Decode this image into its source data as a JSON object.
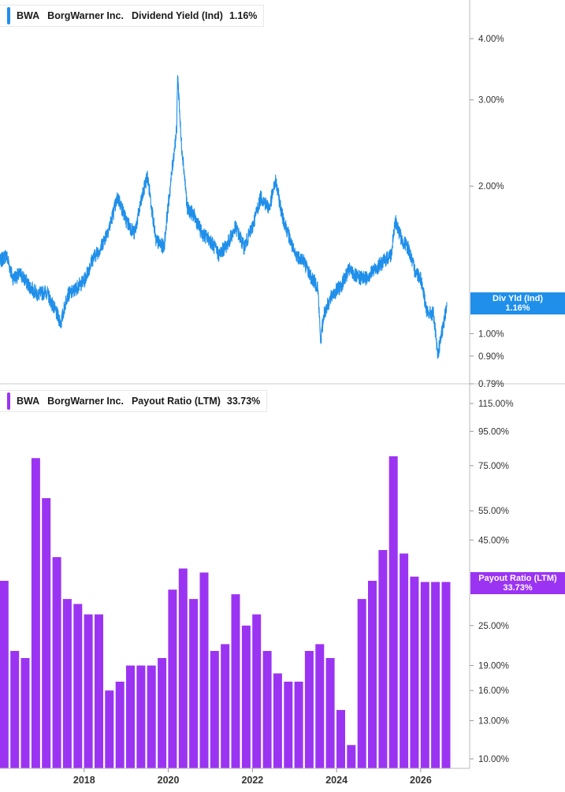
{
  "colors": {
    "yield": "#1f8fea",
    "payout": "#9b34f2",
    "axis": "#c8c8c8"
  },
  "panels": {
    "top": {
      "ticker": "BWA",
      "company": "BorgWarner Inc.",
      "metric": "Dividend Yield (Ind)",
      "value": "1.16%",
      "flag_title": "Div Yld (Ind)",
      "flag_value": "1.16%"
    },
    "bottom": {
      "ticker": "BWA",
      "company": "BorgWarner Inc.",
      "metric": "Payout Ratio (LTM)",
      "value": "33.73%",
      "flag_title": "Payout Ratio (LTM)",
      "flag_value": "33.73%"
    }
  },
  "chart_data": [
    {
      "type": "line",
      "title": "BWA BorgWarner Inc. Dividend Yield (Ind) 1.16%",
      "series": [
        {
          "name": "Dividend Yield (Ind)",
          "unit": "%"
        }
      ],
      "x": [
        2016.0,
        2016.15,
        2016.3,
        2016.5,
        2016.7,
        2016.9,
        2017.1,
        2017.3,
        2017.45,
        2017.6,
        2017.75,
        2017.85,
        2018.0,
        2018.2,
        2018.4,
        2018.6,
        2018.8,
        2019.0,
        2019.2,
        2019.35,
        2019.5,
        2019.7,
        2019.9,
        2020.05,
        2020.2,
        2020.22,
        2020.3,
        2020.45,
        2020.6,
        2020.8,
        2021.0,
        2021.2,
        2021.4,
        2021.6,
        2021.8,
        2022.0,
        2022.2,
        2022.4,
        2022.55,
        2022.7,
        2022.85,
        2023.0,
        2023.2,
        2023.4,
        2023.55,
        2023.62,
        2023.7,
        2023.9,
        2024.1,
        2024.3,
        2024.5,
        2024.7,
        2024.9,
        2025.1,
        2025.3,
        2025.4,
        2025.55,
        2025.7,
        2025.85,
        2026.0,
        2026.15,
        2026.3,
        2026.4,
        2026.55,
        2026.62
      ],
      "y": [
        1.4,
        1.45,
        1.3,
        1.32,
        1.25,
        1.2,
        1.22,
        1.12,
        1.05,
        1.2,
        1.22,
        1.25,
        1.28,
        1.42,
        1.5,
        1.65,
        1.9,
        1.7,
        1.6,
        1.85,
        2.1,
        1.55,
        1.5,
        2.0,
        2.6,
        3.4,
        2.5,
        1.8,
        1.75,
        1.6,
        1.55,
        1.45,
        1.52,
        1.65,
        1.5,
        1.65,
        1.9,
        1.8,
        2.05,
        1.75,
        1.6,
        1.45,
        1.42,
        1.3,
        1.25,
        0.96,
        1.1,
        1.2,
        1.25,
        1.35,
        1.3,
        1.3,
        1.35,
        1.4,
        1.45,
        1.7,
        1.55,
        1.5,
        1.35,
        1.3,
        1.1,
        1.1,
        0.9,
        1.05,
        1.16
      ],
      "yscale": "log",
      "ylim": [
        0.79,
        4.6
      ],
      "yticks": [
        "4.00%",
        "3.00%",
        "2.00%",
        "1.00%",
        "0.90%",
        "0.79%"
      ],
      "ytick_values": [
        4.0,
        3.0,
        2.0,
        1.0,
        0.9,
        0.79
      ],
      "xlim": [
        2016.0,
        2026.9
      ]
    },
    {
      "type": "bar",
      "title": "BWA BorgWarner Inc. Payout Ratio (LTM) 33.73%",
      "series": [
        {
          "name": "Payout Ratio (LTM)",
          "unit": "%"
        }
      ],
      "x": [
        2016.1,
        2016.35,
        2016.6,
        2016.85,
        2017.1,
        2017.35,
        2017.6,
        2017.85,
        2018.1,
        2018.35,
        2018.6,
        2018.85,
        2019.1,
        2019.35,
        2019.6,
        2019.85,
        2020.1,
        2020.35,
        2020.6,
        2020.85,
        2021.1,
        2021.35,
        2021.6,
        2021.85,
        2022.1,
        2022.35,
        2022.6,
        2022.85,
        2023.1,
        2023.35,
        2023.6,
        2023.85,
        2024.1,
        2024.35,
        2024.6,
        2024.85,
        2025.1,
        2025.35,
        2025.6,
        2025.85,
        2026.1,
        2026.35,
        2026.6
      ],
      "values": [
        34,
        21,
        20,
        79,
        60,
        40,
        30,
        29,
        27,
        27,
        16,
        17,
        19,
        19,
        19,
        20,
        32,
        37,
        30,
        36,
        21,
        22,
        31,
        25,
        27,
        21,
        18,
        17,
        17,
        21,
        22,
        20,
        14,
        11,
        30,
        34,
        42,
        80,
        41,
        35,
        33.73,
        33.73,
        33.73
      ],
      "yscale": "log",
      "ylim": [
        9.5,
        120
      ],
      "yticks": [
        "115.00%",
        "95.00%",
        "75.00%",
        "55.00%",
        "45.00%",
        "25.00%",
        "19.00%",
        "16.00%",
        "13.00%",
        "10.00%"
      ],
      "ytick_values": [
        115,
        95,
        75,
        55,
        45,
        25,
        19,
        16,
        13,
        10
      ],
      "xticks": [
        "2018",
        "2020",
        "2022",
        "2024",
        "2026"
      ],
      "xtick_values": [
        2018,
        2020,
        2022,
        2024,
        2026
      ],
      "xlim": [
        2016.0,
        2026.9
      ]
    }
  ]
}
